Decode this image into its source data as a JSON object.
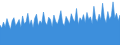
{
  "chart_data": {
    "type": "area",
    "categories": [
      null,
      null,
      null,
      null,
      null,
      null,
      null,
      null,
      null,
      null,
      null,
      null,
      null,
      null,
      null,
      null,
      null,
      null,
      null,
      null,
      null,
      null,
      null,
      null,
      null,
      null,
      null,
      null,
      null,
      null,
      null,
      null,
      null,
      null,
      null,
      null,
      null,
      null,
      null,
      null,
      null,
      null,
      null,
      null,
      null,
      null,
      null,
      null,
      null,
      null,
      null,
      null,
      null,
      null,
      null,
      null,
      null,
      null,
      null,
      null,
      null,
      null,
      null,
      null,
      null,
      null,
      null,
      null,
      null,
      null
    ],
    "values": [
      45,
      38,
      52,
      41,
      60,
      47,
      35,
      55,
      62,
      44,
      50,
      58,
      40,
      66,
      48,
      53,
      72,
      46,
      57,
      39,
      61,
      70,
      43,
      55,
      49,
      75,
      52,
      45,
      63,
      58,
      41,
      68,
      54,
      47,
      60,
      78,
      50,
      44,
      65,
      57,
      48,
      71,
      59,
      52,
      83,
      46,
      62,
      55,
      69,
      50,
      74,
      58,
      64,
      48,
      88,
      60,
      53,
      70,
      57,
      95,
      62,
      50,
      76,
      58,
      66,
      98,
      61,
      72,
      55,
      68
    ],
    "color": "#3d8fdc",
    "ylim": [
      0,
      100
    ],
    "tick_labels": false
  }
}
